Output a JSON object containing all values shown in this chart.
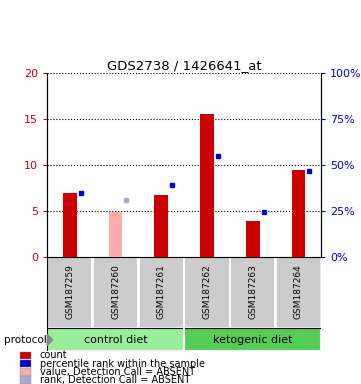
{
  "title": "GDS2738 / 1426641_at",
  "samples": [
    "GSM187259",
    "GSM187260",
    "GSM187261",
    "GSM187262",
    "GSM187263",
    "GSM187264"
  ],
  "count_values": [
    7.0,
    null,
    6.8,
    15.6,
    3.9,
    9.5
  ],
  "absent_value_values": [
    null,
    4.9,
    null,
    null,
    null,
    null
  ],
  "rank_values": [
    35.0,
    null,
    39.0,
    55.0,
    24.5,
    47.0
  ],
  "absent_rank_values": [
    null,
    31.0,
    null,
    null,
    null,
    null
  ],
  "ylim_left": [
    0,
    20
  ],
  "ylim_right": [
    0,
    100
  ],
  "yticks_left": [
    0,
    5,
    10,
    15,
    20
  ],
  "ytick_labels_left": [
    "0",
    "5",
    "10",
    "15",
    "20"
  ],
  "ytick_labels_right": [
    "0%",
    "25%",
    "50%",
    "75%",
    "100%"
  ],
  "groups": [
    {
      "name": "control diet",
      "indices": [
        0,
        1,
        2
      ],
      "color": "#99ee99"
    },
    {
      "name": "ketogenic diet",
      "indices": [
        3,
        4,
        5
      ],
      "color": "#55cc55"
    }
  ],
  "bar_width": 0.3,
  "legend_items": [
    {
      "color": "#cc0000",
      "label": "count"
    },
    {
      "color": "#0000cc",
      "label": "percentile rank within the sample"
    },
    {
      "color": "#ffaaaa",
      "label": "value, Detection Call = ABSENT"
    },
    {
      "color": "#aaaacc",
      "label": "rank, Detection Call = ABSENT"
    }
  ]
}
